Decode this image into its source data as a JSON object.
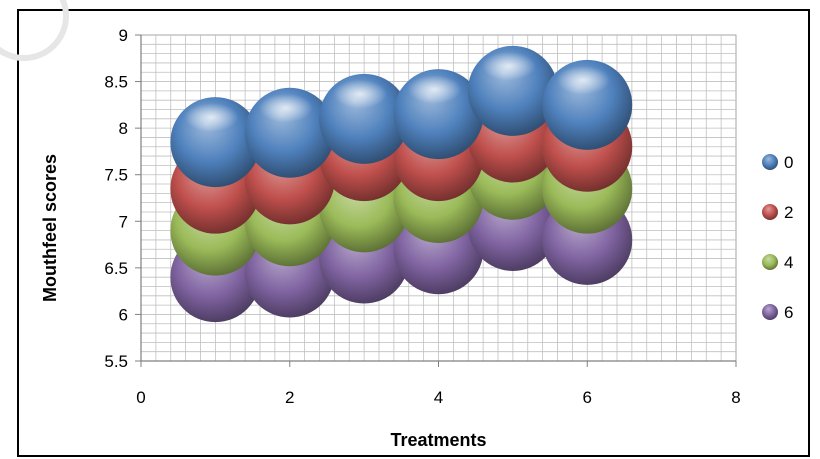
{
  "chart_data": {
    "type": "bubble",
    "xlabel": "Treatments",
    "ylabel": "Mouthfeel scores",
    "xlim": [
      0,
      8
    ],
    "ylim": [
      5.5,
      9
    ],
    "xticks": [
      "0",
      "2",
      "4",
      "6",
      "8"
    ],
    "yticks": [
      "5.5",
      "6",
      "6.5",
      "7",
      "7.5",
      "8",
      "8.5",
      "9"
    ],
    "grid": true,
    "legend_position": "right",
    "series": [
      {
        "name": "0",
        "color": "#4f81bd",
        "x": [
          1,
          2,
          3,
          4,
          5,
          6
        ],
        "y": [
          7.85,
          7.95,
          8.1,
          8.15,
          8.4,
          8.25
        ]
      },
      {
        "name": "2",
        "color": "#c0504d",
        "x": [
          1,
          2,
          3,
          4,
          5,
          6
        ],
        "y": [
          7.35,
          7.45,
          7.7,
          7.7,
          7.9,
          7.8
        ]
      },
      {
        "name": "4",
        "color": "#9bbb59",
        "x": [
          1,
          2,
          3,
          4,
          5,
          6
        ],
        "y": [
          6.9,
          7.0,
          7.15,
          7.25,
          7.5,
          7.35
        ]
      },
      {
        "name": "6",
        "color": "#8064a2",
        "x": [
          1,
          2,
          3,
          4,
          5,
          6
        ],
        "y": [
          6.4,
          6.45,
          6.6,
          6.7,
          6.95,
          6.8
        ]
      }
    ]
  }
}
